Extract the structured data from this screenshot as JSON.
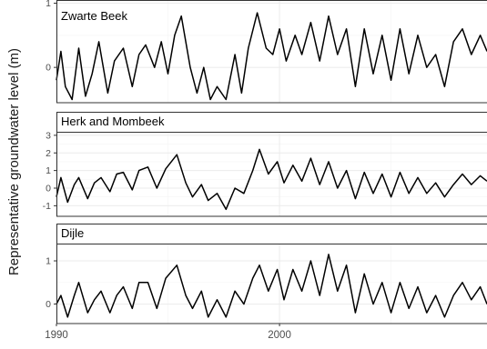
{
  "chart_data": {
    "type": "line",
    "ylabel": "Representative groundwater level (m)",
    "xlim": [
      1990,
      2009.3
    ],
    "x_ticks": [
      1990,
      2000
    ],
    "grid": true,
    "facets": [
      {
        "title": "Zwarte Beek",
        "ylim": [
          -0.55,
          1.05
        ],
        "y_ticks": [
          0,
          1
        ],
        "points": [
          [
            1990.0,
            -0.2
          ],
          [
            1990.2,
            0.25
          ],
          [
            1990.4,
            -0.3
          ],
          [
            1990.7,
            -0.5
          ],
          [
            1991.0,
            0.3
          ],
          [
            1991.3,
            -0.45
          ],
          [
            1991.6,
            -0.1
          ],
          [
            1991.9,
            0.4
          ],
          [
            1992.2,
            -0.2
          ],
          [
            1992.3,
            -0.4
          ],
          [
            1992.6,
            0.1
          ],
          [
            1993.0,
            0.3
          ],
          [
            1993.4,
            -0.3
          ],
          [
            1993.7,
            0.2
          ],
          [
            1994.0,
            0.35
          ],
          [
            1994.4,
            0.0
          ],
          [
            1994.7,
            0.4
          ],
          [
            1995.0,
            -0.1
          ],
          [
            1995.3,
            0.5
          ],
          [
            1995.6,
            0.8
          ],
          [
            1996.0,
            0.0
          ],
          [
            1996.3,
            -0.4
          ],
          [
            1996.6,
            0.0
          ],
          [
            1996.9,
            -0.5
          ],
          [
            1997.2,
            -0.3
          ],
          [
            1997.6,
            -0.5
          ],
          [
            1998.0,
            0.2
          ],
          [
            1998.3,
            -0.4
          ],
          [
            1998.6,
            0.3
          ],
          [
            1999.0,
            0.85
          ],
          [
            1999.4,
            0.3
          ],
          [
            1999.7,
            0.2
          ],
          [
            2000.0,
            0.6
          ],
          [
            2000.3,
            0.1
          ],
          [
            2000.7,
            0.5
          ],
          [
            2001.0,
            0.2
          ],
          [
            2001.4,
            0.7
          ],
          [
            2001.8,
            0.1
          ],
          [
            2002.2,
            0.8
          ],
          [
            2002.6,
            0.2
          ],
          [
            2003.0,
            0.6
          ],
          [
            2003.4,
            -0.3
          ],
          [
            2003.8,
            0.6
          ],
          [
            2004.2,
            -0.1
          ],
          [
            2004.6,
            0.5
          ],
          [
            2005.0,
            -0.2
          ],
          [
            2005.4,
            0.6
          ],
          [
            2005.8,
            -0.1
          ],
          [
            2006.2,
            0.5
          ],
          [
            2006.6,
            0.0
          ],
          [
            2007.0,
            0.2
          ],
          [
            2007.4,
            -0.3
          ],
          [
            2007.8,
            0.4
          ],
          [
            2008.2,
            0.6
          ],
          [
            2008.6,
            0.2
          ],
          [
            2009.0,
            0.5
          ],
          [
            2009.3,
            0.25
          ]
        ]
      },
      {
        "title": "Herk and Mombeek",
        "ylim": [
          -1.6,
          3.2
        ],
        "y_ticks": [
          -1,
          0,
          1,
          2,
          3
        ],
        "points": [
          [
            1990.0,
            -0.5
          ],
          [
            1990.2,
            0.6
          ],
          [
            1990.5,
            -0.8
          ],
          [
            1990.8,
            0.2
          ],
          [
            1991.0,
            0.6
          ],
          [
            1991.4,
            -0.6
          ],
          [
            1991.7,
            0.3
          ],
          [
            1992.0,
            0.6
          ],
          [
            1992.4,
            -0.2
          ],
          [
            1992.7,
            0.8
          ],
          [
            1993.0,
            0.9
          ],
          [
            1993.4,
            -0.1
          ],
          [
            1993.7,
            1.0
          ],
          [
            1994.1,
            1.2
          ],
          [
            1994.5,
            0.0
          ],
          [
            1994.9,
            1.1
          ],
          [
            1995.4,
            1.9
          ],
          [
            1995.8,
            0.3
          ],
          [
            1996.1,
            -0.5
          ],
          [
            1996.5,
            0.2
          ],
          [
            1996.8,
            -0.7
          ],
          [
            1997.2,
            -0.3
          ],
          [
            1997.6,
            -1.2
          ],
          [
            1998.0,
            0.0
          ],
          [
            1998.4,
            -0.3
          ],
          [
            1998.8,
            1.0
          ],
          [
            1999.1,
            2.2
          ],
          [
            1999.5,
            0.8
          ],
          [
            1999.9,
            1.5
          ],
          [
            2000.2,
            0.3
          ],
          [
            2000.6,
            1.3
          ],
          [
            2001.0,
            0.4
          ],
          [
            2001.4,
            1.7
          ],
          [
            2001.8,
            0.2
          ],
          [
            2002.2,
            1.5
          ],
          [
            2002.6,
            0.0
          ],
          [
            2003.0,
            1.0
          ],
          [
            2003.4,
            -0.6
          ],
          [
            2003.8,
            0.9
          ],
          [
            2004.2,
            -0.3
          ],
          [
            2004.6,
            0.8
          ],
          [
            2005.0,
            -0.5
          ],
          [
            2005.4,
            0.9
          ],
          [
            2005.8,
            -0.3
          ],
          [
            2006.2,
            0.6
          ],
          [
            2006.6,
            -0.3
          ],
          [
            2007.0,
            0.3
          ],
          [
            2007.4,
            -0.5
          ],
          [
            2007.8,
            0.2
          ],
          [
            2008.2,
            0.8
          ],
          [
            2008.6,
            0.2
          ],
          [
            2009.0,
            0.7
          ],
          [
            2009.3,
            0.4
          ]
        ]
      },
      {
        "title": "Dijle",
        "ylim": [
          -0.45,
          1.4
        ],
        "y_ticks": [
          0,
          1
        ],
        "points": [
          [
            1990.0,
            0.0
          ],
          [
            1990.2,
            0.2
          ],
          [
            1990.5,
            -0.3
          ],
          [
            1990.8,
            0.2
          ],
          [
            1991.0,
            0.5
          ],
          [
            1991.4,
            -0.2
          ],
          [
            1991.7,
            0.1
          ],
          [
            1992.0,
            0.3
          ],
          [
            1992.4,
            -0.2
          ],
          [
            1992.7,
            0.2
          ],
          [
            1993.0,
            0.4
          ],
          [
            1993.4,
            -0.1
          ],
          [
            1993.7,
            0.5
          ],
          [
            1994.1,
            0.5
          ],
          [
            1994.5,
            -0.1
          ],
          [
            1994.9,
            0.6
          ],
          [
            1995.4,
            0.9
          ],
          [
            1995.8,
            0.2
          ],
          [
            1996.1,
            -0.1
          ],
          [
            1996.5,
            0.3
          ],
          [
            1996.8,
            -0.3
          ],
          [
            1997.2,
            0.1
          ],
          [
            1997.6,
            -0.3
          ],
          [
            1998.0,
            0.3
          ],
          [
            1998.4,
            0.0
          ],
          [
            1998.8,
            0.6
          ],
          [
            1999.1,
            0.9
          ],
          [
            1999.5,
            0.3
          ],
          [
            1999.9,
            0.8
          ],
          [
            2000.2,
            0.1
          ],
          [
            2000.6,
            0.8
          ],
          [
            2001.0,
            0.3
          ],
          [
            2001.4,
            1.0
          ],
          [
            2001.8,
            0.2
          ],
          [
            2002.2,
            1.15
          ],
          [
            2002.6,
            0.3
          ],
          [
            2003.0,
            0.9
          ],
          [
            2003.4,
            -0.2
          ],
          [
            2003.8,
            0.7
          ],
          [
            2004.2,
            0.0
          ],
          [
            2004.6,
            0.5
          ],
          [
            2005.0,
            -0.2
          ],
          [
            2005.4,
            0.5
          ],
          [
            2005.8,
            -0.1
          ],
          [
            2006.2,
            0.4
          ],
          [
            2006.6,
            -0.2
          ],
          [
            2007.0,
            0.2
          ],
          [
            2007.4,
            -0.3
          ],
          [
            2007.8,
            0.2
          ],
          [
            2008.2,
            0.5
          ],
          [
            2008.6,
            0.1
          ],
          [
            2009.0,
            0.4
          ],
          [
            2009.3,
            0.0
          ]
        ]
      }
    ]
  }
}
